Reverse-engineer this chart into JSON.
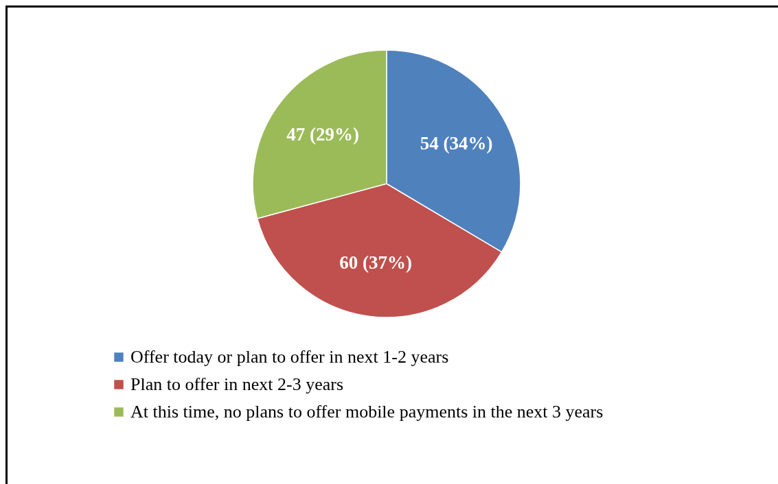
{
  "chart_data": {
    "type": "pie",
    "categories": [
      "Offer today or plan to offer in next 1-2 years",
      "Plan to offer in next 2-3 years",
      "At this time, no plans to offer mobile payments in the next 3 years"
    ],
    "values": [
      54,
      60,
      47
    ],
    "value_labels": [
      "54  (34%)",
      "60  (37%)",
      "47  (29%)"
    ],
    "colors": [
      "#4f81bd",
      "#c0504d",
      "#9bbb59"
    ],
    "legend": "bottom"
  }
}
